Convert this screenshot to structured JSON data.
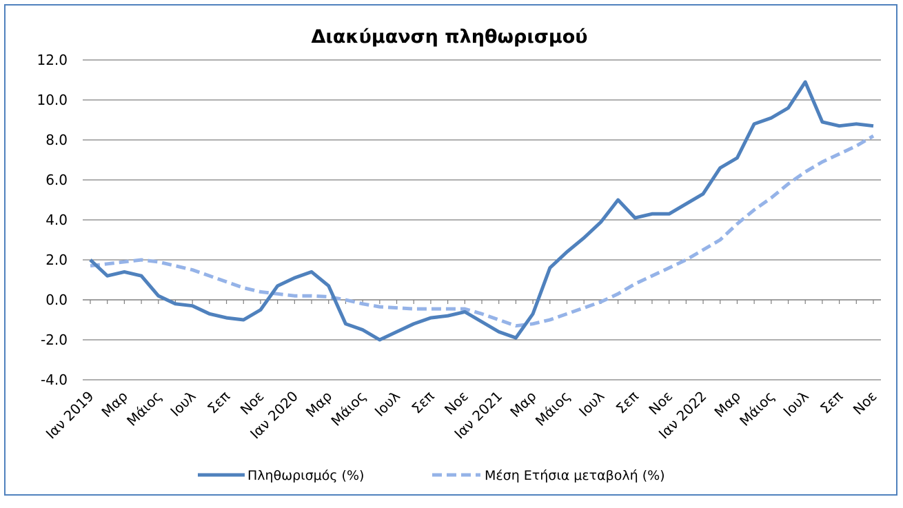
{
  "chart_data": {
    "type": "line",
    "title": "Διακύμανση  πληθωρισμού",
    "xlabel": "",
    "ylabel": "",
    "ylim": [
      -4,
      12
    ],
    "yticks": [
      "12.0",
      "10.0",
      "8.0",
      "6.0",
      "4.0",
      "2.0",
      "0.0",
      "-2.0",
      "-4.0"
    ],
    "grid": "horizontal",
    "legend_position": "bottom",
    "x_tick_labels": [
      "Ιαν 2019",
      "Μαρ",
      "Μάιος",
      "Ιουλ",
      "Σεπ",
      "Νοε",
      "Ιαν 2020",
      "Μαρ",
      "Μάιος",
      "Ιουλ",
      "Σεπ",
      "Νοε",
      "Ιαν 2021",
      "Μαρ",
      "Μάιος",
      "Ιουλ",
      "Σεπ",
      "Νοε",
      "Ιαν 2022",
      "Μαρ",
      "Μάιος",
      "Ιουλ",
      "Σεπ",
      "Νοε"
    ],
    "x": [
      "2019-01",
      "2019-02",
      "2019-03",
      "2019-04",
      "2019-05",
      "2019-06",
      "2019-07",
      "2019-08",
      "2019-09",
      "2019-10",
      "2019-11",
      "2019-12",
      "2020-01",
      "2020-02",
      "2020-03",
      "2020-04",
      "2020-05",
      "2020-06",
      "2020-07",
      "2020-08",
      "2020-09",
      "2020-10",
      "2020-11",
      "2020-12",
      "2021-01",
      "2021-02",
      "2021-03",
      "2021-04",
      "2021-05",
      "2021-06",
      "2021-07",
      "2021-08",
      "2021-09",
      "2021-10",
      "2021-11",
      "2021-12",
      "2022-01",
      "2022-02",
      "2022-03",
      "2022-04",
      "2022-05",
      "2022-06",
      "2022-07",
      "2022-08",
      "2022-09",
      "2022-10",
      "2022-11"
    ],
    "series": [
      {
        "name": "Πληθωρισμός (%)",
        "color": "#4f81bd",
        "style": "solid",
        "values": [
          2.0,
          1.2,
          1.4,
          1.2,
          0.2,
          -0.2,
          -0.3,
          -0.7,
          -0.9,
          -1.0,
          -0.5,
          0.7,
          1.1,
          1.4,
          0.7,
          -1.2,
          -1.5,
          -2.0,
          -1.6,
          -1.2,
          -0.9,
          -0.8,
          -0.6,
          -1.1,
          -1.6,
          -1.9,
          -0.7,
          1.6,
          2.4,
          3.1,
          3.9,
          5.0,
          4.1,
          4.3,
          4.3,
          4.8,
          5.3,
          6.6,
          7.1,
          8.8,
          9.1,
          9.6,
          10.9,
          8.9,
          8.7,
          8.8,
          8.7
        ]
      },
      {
        "name": "Μέση Ετήσια μεταβολή (%)",
        "color": "#95b3e8",
        "style": "dashed",
        "values": [
          1.7,
          1.8,
          1.9,
          2.0,
          1.9,
          1.7,
          1.5,
          1.2,
          0.9,
          0.6,
          0.4,
          0.3,
          0.2,
          0.2,
          0.15,
          0.0,
          -0.2,
          -0.35,
          -0.4,
          -0.45,
          -0.45,
          -0.45,
          -0.45,
          -0.7,
          -1.0,
          -1.3,
          -1.2,
          -1.0,
          -0.7,
          -0.4,
          -0.1,
          0.3,
          0.8,
          1.2,
          1.6,
          2.0,
          2.5,
          3.0,
          3.8,
          4.5,
          5.1,
          5.8,
          6.4,
          6.9,
          7.3,
          7.7,
          8.2
        ]
      }
    ]
  }
}
